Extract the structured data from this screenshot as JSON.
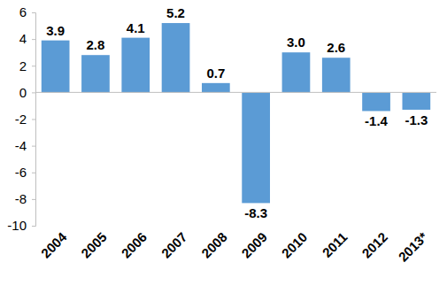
{
  "chart_data": {
    "type": "bar",
    "categories": [
      "2004",
      "2005",
      "2006",
      "2007",
      "2008",
      "2009",
      "2010",
      "2011",
      "2012",
      "2013*"
    ],
    "values": [
      3.9,
      2.8,
      4.1,
      5.2,
      0.7,
      -8.3,
      3.0,
      2.6,
      -1.4,
      -1.3
    ],
    "value_labels": [
      "3.9",
      "2.8",
      "4.1",
      "5.2",
      "0.7",
      "-8.3",
      "3.0",
      "2.6",
      "-1.4",
      "-1.3"
    ],
    "color": "#5b9bd5",
    "ylim": [
      -10,
      6
    ],
    "yticks": [
      -10,
      -8,
      -6,
      -4,
      -2,
      0,
      2,
      4,
      6
    ],
    "grid": false,
    "data_labels": true
  }
}
